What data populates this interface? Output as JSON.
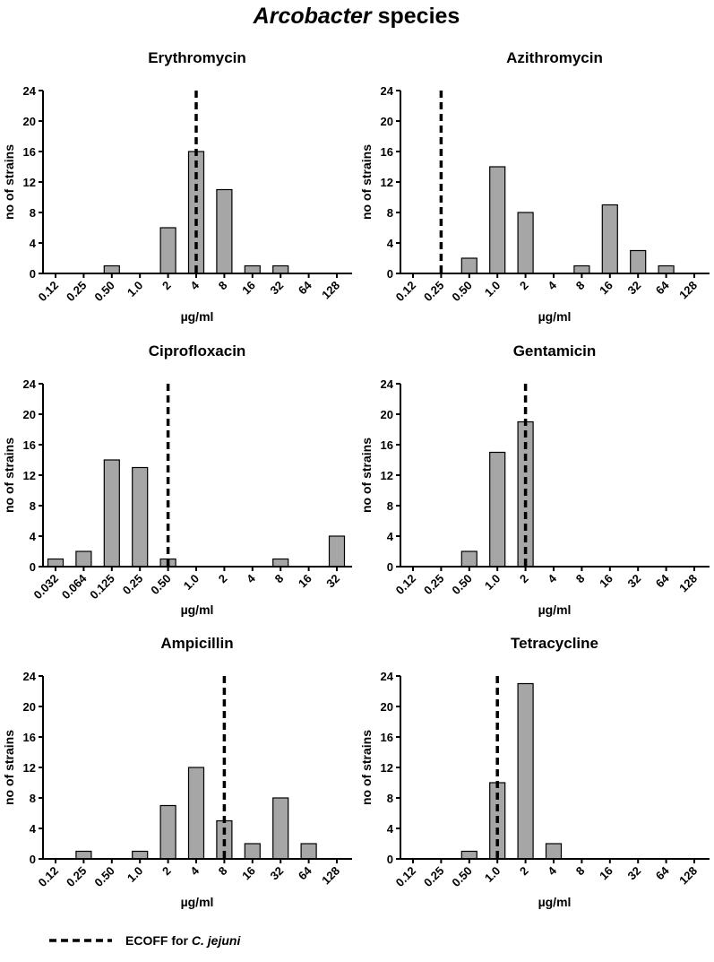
{
  "main_title": {
    "italic": "Arcobacter",
    "rest": " species"
  },
  "legend": {
    "prefix": "ECOFF for ",
    "italic": "C. jejuni"
  },
  "colors": {
    "bar": "#a6a6a6",
    "stroke": "#000000"
  },
  "chart_data": [
    {
      "type": "bar",
      "title": "Erythromycin",
      "xlabel": "µg/ml",
      "ylabel": "no of strains",
      "ylim": [
        0,
        24
      ],
      "yticks": [
        0,
        4,
        8,
        12,
        16,
        20,
        24
      ],
      "categories": [
        "0.12",
        "0.25",
        "0.50",
        "1.0",
        "2",
        "4",
        "8",
        "16",
        "32",
        "64",
        "128"
      ],
      "values": [
        0,
        0,
        1,
        0,
        6,
        16,
        11,
        1,
        1,
        0,
        0
      ],
      "ecoff": "4"
    },
    {
      "type": "bar",
      "title": "Azithromycin",
      "xlabel": "µg/ml",
      "ylabel": "no of strains",
      "ylim": [
        0,
        24
      ],
      "yticks": [
        0,
        4,
        8,
        12,
        16,
        20,
        24
      ],
      "categories": [
        "0.12",
        "0.25",
        "0.50",
        "1.0",
        "2",
        "4",
        "8",
        "16",
        "32",
        "64",
        "128"
      ],
      "values": [
        0,
        0,
        2,
        14,
        8,
        0,
        1,
        9,
        3,
        1,
        0
      ],
      "ecoff": "0.25"
    },
    {
      "type": "bar",
      "title": "Ciprofloxacin",
      "xlabel": "µg/ml",
      "ylabel": "no of strains",
      "ylim": [
        0,
        24
      ],
      "yticks": [
        0,
        4,
        8,
        12,
        16,
        20,
        24
      ],
      "categories": [
        "0.032",
        "0.064",
        "0.125",
        "0.25",
        "0.50",
        "1.0",
        "2",
        "4",
        "8",
        "16",
        "32"
      ],
      "values": [
        1,
        2,
        14,
        13,
        1,
        0,
        0,
        0,
        1,
        0,
        4
      ],
      "ecoff": "0.50"
    },
    {
      "type": "bar",
      "title": "Gentamicin",
      "xlabel": "µg/ml",
      "ylabel": "no of strains",
      "ylim": [
        0,
        24
      ],
      "yticks": [
        0,
        4,
        8,
        12,
        16,
        20,
        24
      ],
      "categories": [
        "0.12",
        "0.25",
        "0.50",
        "1.0",
        "2",
        "4",
        "8",
        "16",
        "32",
        "64",
        "128"
      ],
      "values": [
        0,
        0,
        2,
        15,
        19,
        0,
        0,
        0,
        0,
        0,
        0
      ],
      "ecoff": "2"
    },
    {
      "type": "bar",
      "title": "Ampicillin",
      "xlabel": "µg/ml",
      "ylabel": "no of strains",
      "ylim": [
        0,
        24
      ],
      "yticks": [
        0,
        4,
        8,
        12,
        16,
        20,
        24
      ],
      "categories": [
        "0.12",
        "0.25",
        "0.50",
        "1.0",
        "2",
        "4",
        "8",
        "16",
        "32",
        "64",
        "128"
      ],
      "values": [
        0,
        1,
        0,
        1,
        7,
        12,
        5,
        2,
        8,
        2,
        0
      ],
      "ecoff": "8"
    },
    {
      "type": "bar",
      "title": "Tetracycline",
      "xlabel": "µg/ml",
      "ylabel": "no of strains",
      "ylim": [
        0,
        24
      ],
      "yticks": [
        0,
        4,
        8,
        12,
        16,
        20,
        24
      ],
      "categories": [
        "0.12",
        "0.25",
        "0.50",
        "1.0",
        "2",
        "4",
        "8",
        "16",
        "32",
        "64",
        "128"
      ],
      "values": [
        0,
        0,
        1,
        10,
        23,
        2,
        0,
        0,
        0,
        0,
        0
      ],
      "ecoff": "1.0"
    }
  ]
}
